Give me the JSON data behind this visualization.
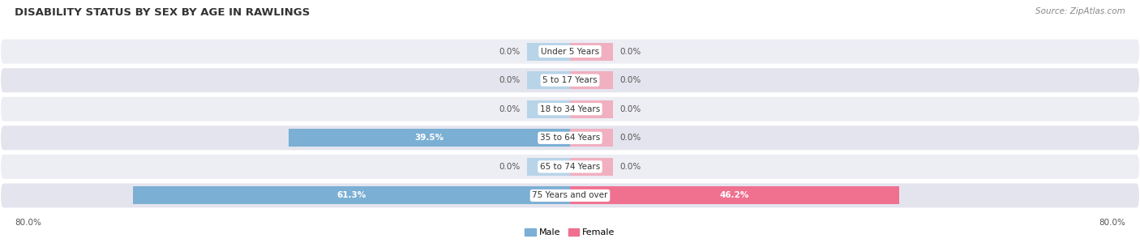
{
  "title": "DISABILITY STATUS BY SEX BY AGE IN RAWLINGS",
  "source": "Source: ZipAtlas.com",
  "categories": [
    "Under 5 Years",
    "5 to 17 Years",
    "18 to 34 Years",
    "35 to 64 Years",
    "65 to 74 Years",
    "75 Years and over"
  ],
  "male_values": [
    0.0,
    0.0,
    0.0,
    39.5,
    0.0,
    61.3
  ],
  "female_values": [
    0.0,
    0.0,
    0.0,
    0.0,
    0.0,
    46.2
  ],
  "male_color": "#7bafd4",
  "male_stub_color": "#b8d4e8",
  "female_color": "#f07090",
  "female_stub_color": "#f0b0c0",
  "row_bg_even": "#ededf4",
  "row_bg_odd": "#e4e4ee",
  "axis_max": 80.0,
  "axis_label_left": "80.0%",
  "axis_label_right": "80.0%",
  "title_fontsize": 9.5,
  "source_fontsize": 7.5,
  "value_fontsize": 7.5,
  "category_fontsize": 7.5,
  "legend_fontsize": 8,
  "stub_size": 6.0,
  "bar_height": 0.62,
  "fig_width": 14.06,
  "fig_height": 3.05
}
